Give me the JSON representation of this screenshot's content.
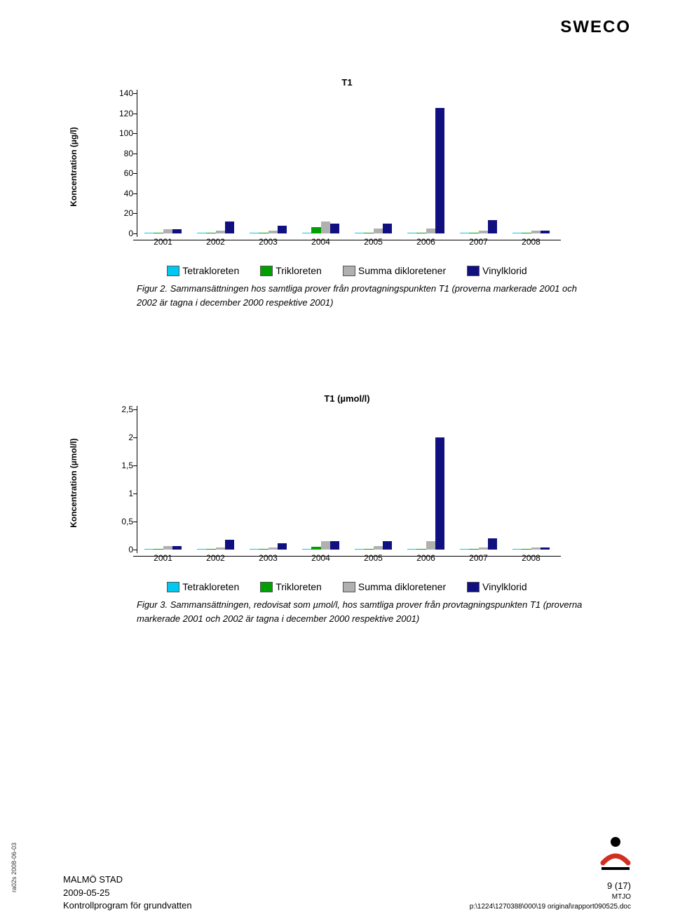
{
  "header_logo": "SWECO",
  "chart1": {
    "title": "T1",
    "ylabel": "Koncentration (µg/l)",
    "ylim": [
      0,
      140
    ],
    "ytick_vals": [
      0,
      20,
      40,
      60,
      80,
      100,
      120,
      140
    ],
    "categories": [
      "2001",
      "2002",
      "2003",
      "2004",
      "2005",
      "2006",
      "2007",
      "2008"
    ],
    "series": [
      {
        "name": "Tetrakloreten",
        "color": "#00c8f0",
        "values": [
          0.5,
          0.5,
          0.5,
          0.5,
          1,
          1,
          1,
          0.5
        ]
      },
      {
        "name": "Trikloreten",
        "color": "#00a000",
        "values": [
          0.5,
          0.5,
          0.5,
          6,
          0.5,
          0.5,
          0.5,
          0.5
        ]
      },
      {
        "name": "Summa dikloretener",
        "color": "#b0b0b0",
        "values": [
          4,
          3,
          3,
          12,
          5,
          5,
          3,
          3
        ]
      },
      {
        "name": "Vinylklorid",
        "color": "#101080",
        "values": [
          4,
          12,
          8,
          10,
          10,
          125,
          13,
          3
        ]
      }
    ]
  },
  "caption1_label": "Figur 2.",
  "caption1_text": " Sammansättningen hos samtliga prover från provtagningspunkten T1 (proverna markerade 2001 och 2002 är tagna i december 2000 respektive 2001)",
  "chart2": {
    "title": "T1 (µmol/l)",
    "ylabel": "Koncentration (µmol/l)",
    "ylim": [
      0,
      2.5
    ],
    "ytick_vals": [
      0,
      0.5,
      1,
      1.5,
      2,
      2.5
    ],
    "ytick_labels": [
      "0",
      "0,5",
      "1",
      "1,5",
      "2",
      "2,5"
    ],
    "categories": [
      "2001",
      "2002",
      "2003",
      "2004",
      "2005",
      "2006",
      "2007",
      "2008"
    ],
    "series": [
      {
        "name": "Tetrakloreten",
        "color": "#00c8f0",
        "values": [
          0.01,
          0.01,
          0.01,
          0.01,
          0.01,
          0.01,
          0.01,
          0.01
        ]
      },
      {
        "name": "Trikloreten",
        "color": "#00a000",
        "values": [
          0.01,
          0.01,
          0.01,
          0.05,
          0.01,
          0.01,
          0.01,
          0.01
        ]
      },
      {
        "name": "Summa dikloretener",
        "color": "#b0b0b0",
        "values": [
          0.06,
          0.04,
          0.04,
          0.15,
          0.06,
          0.15,
          0.04,
          0.04
        ]
      },
      {
        "name": "Vinylklorid",
        "color": "#101080",
        "values": [
          0.06,
          0.18,
          0.11,
          0.15,
          0.15,
          2.0,
          0.2,
          0.04
        ]
      }
    ]
  },
  "caption2_label": "Figur 3.",
  "caption2_text": " Sammansättningen, redovisat som µmol/l, hos samtliga prover från provtagningspunkten T1 (proverna markerade 2001 och 2002 är tagna i december 2000 respektive 2001)",
  "legend_labels": [
    "Tetrakloreten",
    "Trikloreten",
    "Summa dikloretener",
    "Vinylklorid"
  ],
  "legend_colors": [
    "#00c8f0",
    "#00a000",
    "#b0b0b0",
    "#101080"
  ],
  "side_text": "ra02s 2008-06-03",
  "footer_left_line1": "MALMÖ STAD",
  "footer_left_line2": "2009-05-25",
  "footer_left_line3": "Kontrollprogram för grundvatten",
  "footer_right_line1": "9 (17)",
  "footer_right_line2": "MTJO",
  "footer_right_line3": "p:\\1224\\1270388\\000\\19 original\\rapport090525.doc"
}
